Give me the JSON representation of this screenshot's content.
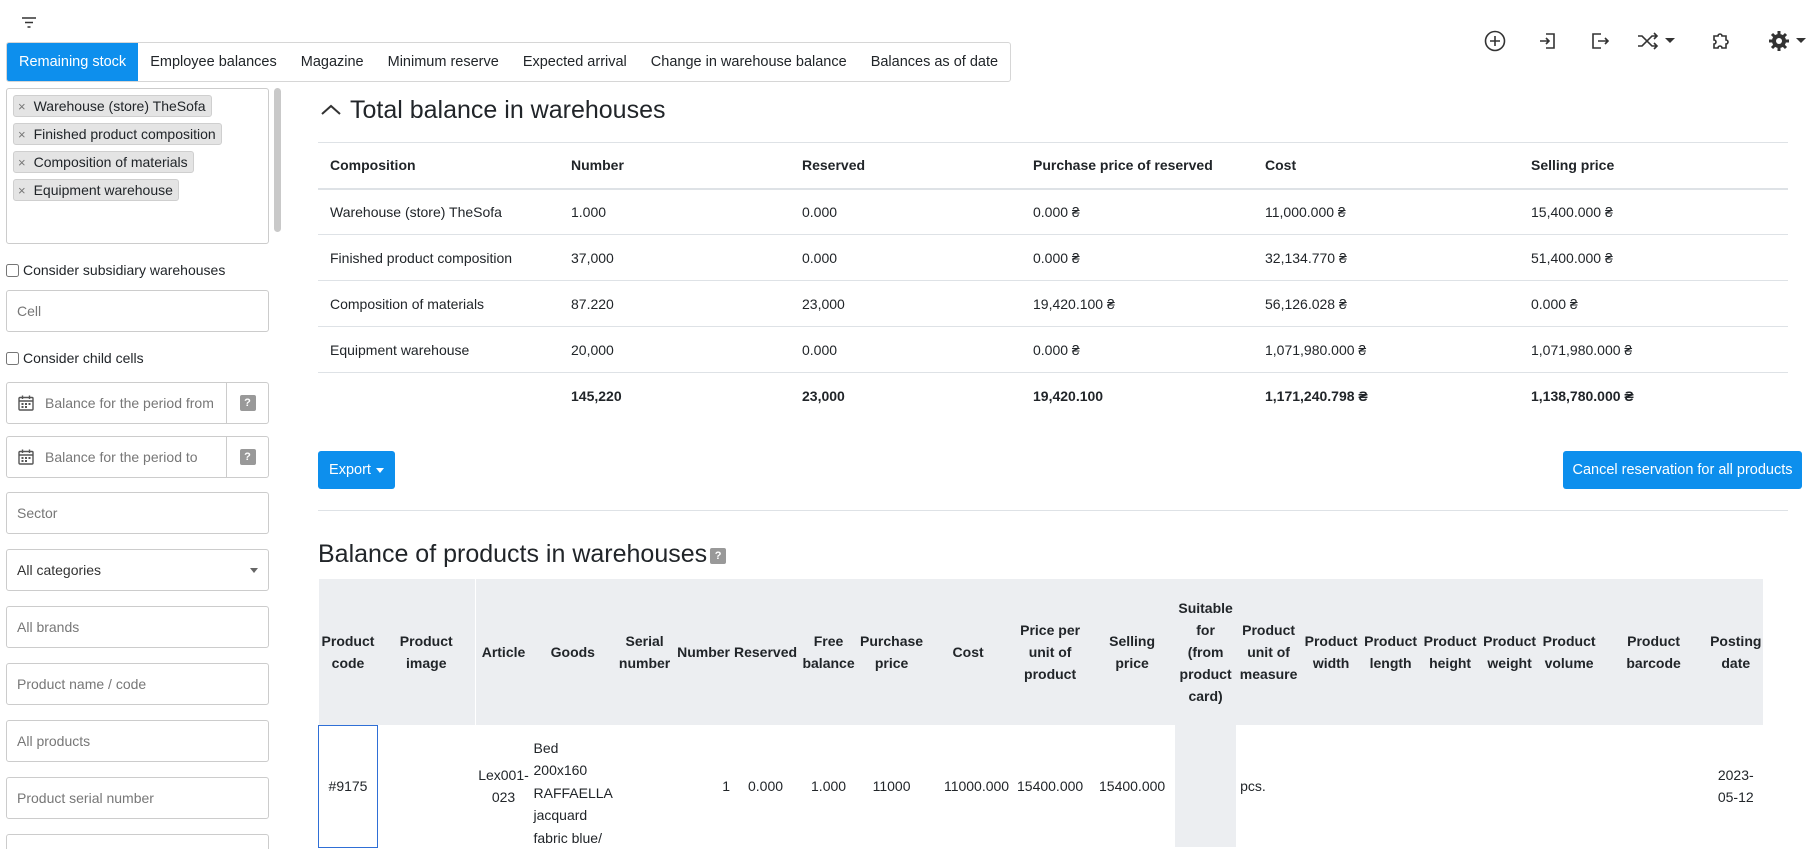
{
  "tabs": [
    "Remaining stock",
    "Employee balances",
    "Magazine",
    "Minimum reserve",
    "Expected arrival",
    "Change in warehouse balance",
    "Balances as of date"
  ],
  "top_icons": [
    "plus-circle-icon",
    "login-icon",
    "logout-icon",
    "shuffle-icon",
    "puzzle-icon",
    "gear-icon"
  ],
  "sidebar": {
    "tags": [
      "Warehouse (store) TheSofa",
      "Finished product composition",
      "Composition of materials",
      "Equipment warehouse"
    ],
    "consider_subsidiary": "Consider subsidiary warehouses",
    "cell_placeholder": "Cell",
    "consider_child": "Consider child cells",
    "period_from": "Balance for the period from",
    "period_to": "Balance for the period to",
    "help": "?",
    "sector_placeholder": "Sector",
    "categories_value": "All categories",
    "brands_placeholder": "All brands",
    "product_name_placeholder": "Product name / code",
    "products_placeholder": "All products",
    "serial_placeholder": "Product serial number"
  },
  "total": {
    "title": "Total balance in warehouses",
    "headers": [
      "Composition",
      "Number",
      "Reserved",
      "Purchase price of reserved",
      "Cost",
      "Selling price"
    ],
    "rows": [
      [
        "Warehouse (store) TheSofa",
        "1.000",
        "0.000",
        "0.000 ₴",
        "11,000.000 ₴",
        "15,400.000 ₴"
      ],
      [
        "Finished product composition",
        "37,000",
        "0.000",
        "0.000 ₴",
        "32,134.770 ₴",
        "51,400.000 ₴"
      ],
      [
        "Composition of materials",
        "87.220",
        "23,000",
        "19,420.100 ₴",
        "56,126.028 ₴",
        "0.000 ₴"
      ],
      [
        "Equipment warehouse",
        "20,000",
        "0.000",
        "0.000 ₴",
        "1,071,980.000 ₴",
        "1,071,980.000 ₴"
      ]
    ],
    "totals": [
      "",
      "145,220",
      "23,000",
      "19,420.100",
      "1,171,240.798 ₴",
      "1,138,780.000 ₴"
    ]
  },
  "export_label": "Export",
  "cancel_label": "Cancel reservation for all products",
  "balance": {
    "title": "Balance of products in warehouses",
    "help": "?",
    "headers": [
      "Product code",
      "Product image",
      "Article",
      "Goods",
      "Serial number",
      "Number",
      "Reserved",
      "Free balance",
      "Purchase price",
      "Cost",
      "Price per unit of product",
      "Selling price",
      "Suitable for (from product card)",
      "Product unit of measure",
      "Product width",
      "Product length",
      "Product height",
      "Product weight",
      "Product volume",
      "Product barcode",
      "Posting date"
    ],
    "row": {
      "code": "#9175",
      "image": "",
      "article": "Lex001-023",
      "goods": "Bed 200x160 RAFFAELLA jacquard fabric blue/",
      "serial": "",
      "number": "1",
      "reserved": "0.000",
      "free": "1.000",
      "purchase": "11000",
      "cost": "11000.000",
      "ppu": "15400.000",
      "selling": "15400.000",
      "suitable": "",
      "unit": "pcs.",
      "width": "",
      "length": "",
      "height": "",
      "weight": "",
      "volume": "",
      "barcode": "",
      "posting": "2023-05-12"
    }
  }
}
